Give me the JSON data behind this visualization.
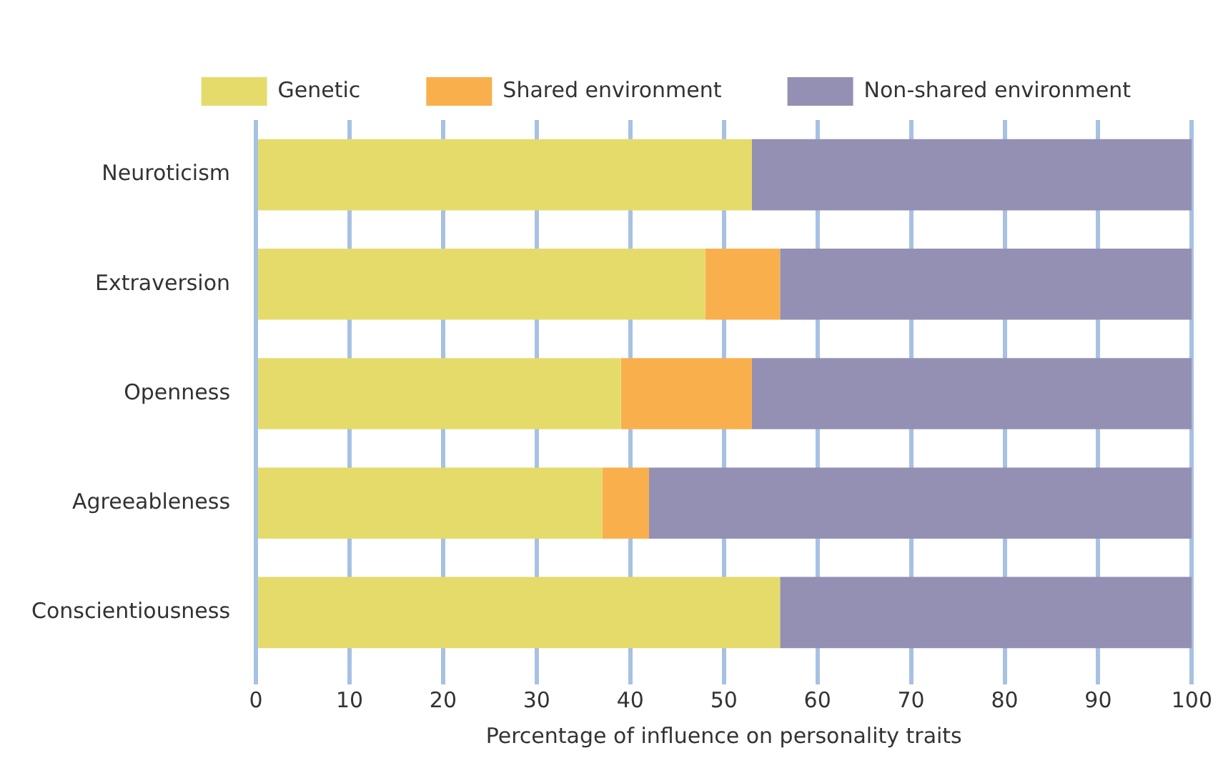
{
  "chart_data": {
    "type": "bar",
    "orientation": "horizontal",
    "stacked": true,
    "xlabel": "Percentage of influence on personality traits",
    "categories": [
      "Neuroticism",
      "Extraversion",
      "Openness",
      "Agreeableness",
      "Conscientiousness"
    ],
    "series": [
      {
        "name": "Genetic",
        "color": "#e5db6b",
        "values": [
          53,
          48,
          39,
          37,
          56
        ]
      },
      {
        "name": "Shared environment",
        "color": "#f9b04c",
        "values": [
          0,
          8,
          14,
          5,
          0
        ]
      },
      {
        "name": "Non-shared environment",
        "color": "#9490b3",
        "values": [
          47,
          44,
          47,
          58,
          44
        ]
      }
    ],
    "xlim": [
      0,
      100
    ],
    "xticks": [
      0,
      10,
      20,
      30,
      40,
      50,
      60,
      70,
      80,
      90,
      100
    ],
    "grid": "x",
    "legend": "top"
  }
}
